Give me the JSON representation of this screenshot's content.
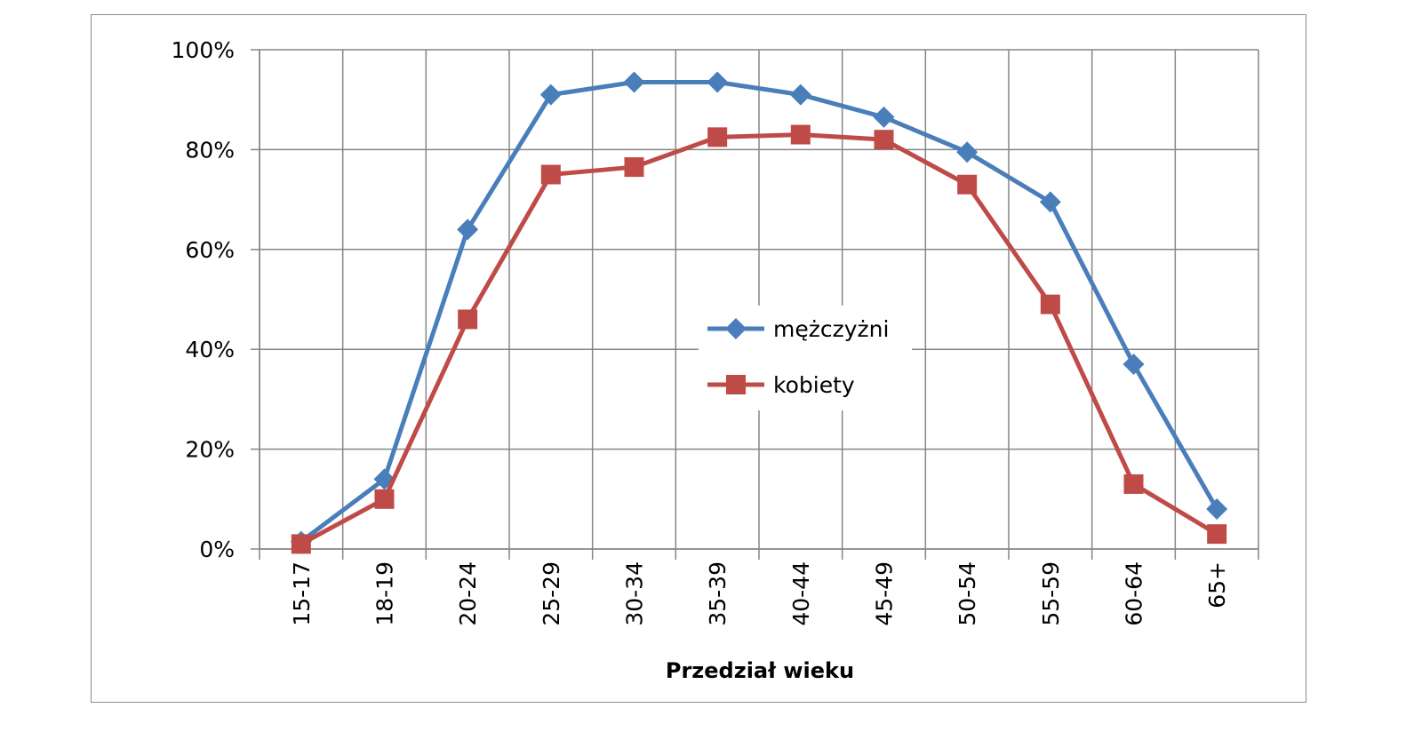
{
  "chart_data": {
    "type": "line",
    "title": "",
    "xlabel": "Przedział wieku",
    "ylabel": "",
    "categories": [
      "15-17",
      "18-19",
      "20-24",
      "25-29",
      "30-34",
      "35-39",
      "40-44",
      "45-49",
      "50-54",
      "55-59",
      "60-64",
      "65+"
    ],
    "yticks": [
      "0%",
      "20%",
      "40%",
      "60%",
      "80%",
      "100%"
    ],
    "ylim": [
      0,
      100
    ],
    "grid": true,
    "legend_position": "center",
    "series": [
      {
        "name": "mężczyżni",
        "color": "#4a7ebb",
        "marker": "diamond",
        "values": [
          1.5,
          14,
          64,
          91,
          93.5,
          93.5,
          91,
          86.5,
          79.5,
          69.5,
          37,
          8
        ]
      },
      {
        "name": "kobiety",
        "color": "#be4b48",
        "marker": "square",
        "values": [
          1,
          10,
          46,
          75,
          76.5,
          82.5,
          83,
          82,
          73,
          49,
          13,
          3
        ]
      }
    ]
  }
}
